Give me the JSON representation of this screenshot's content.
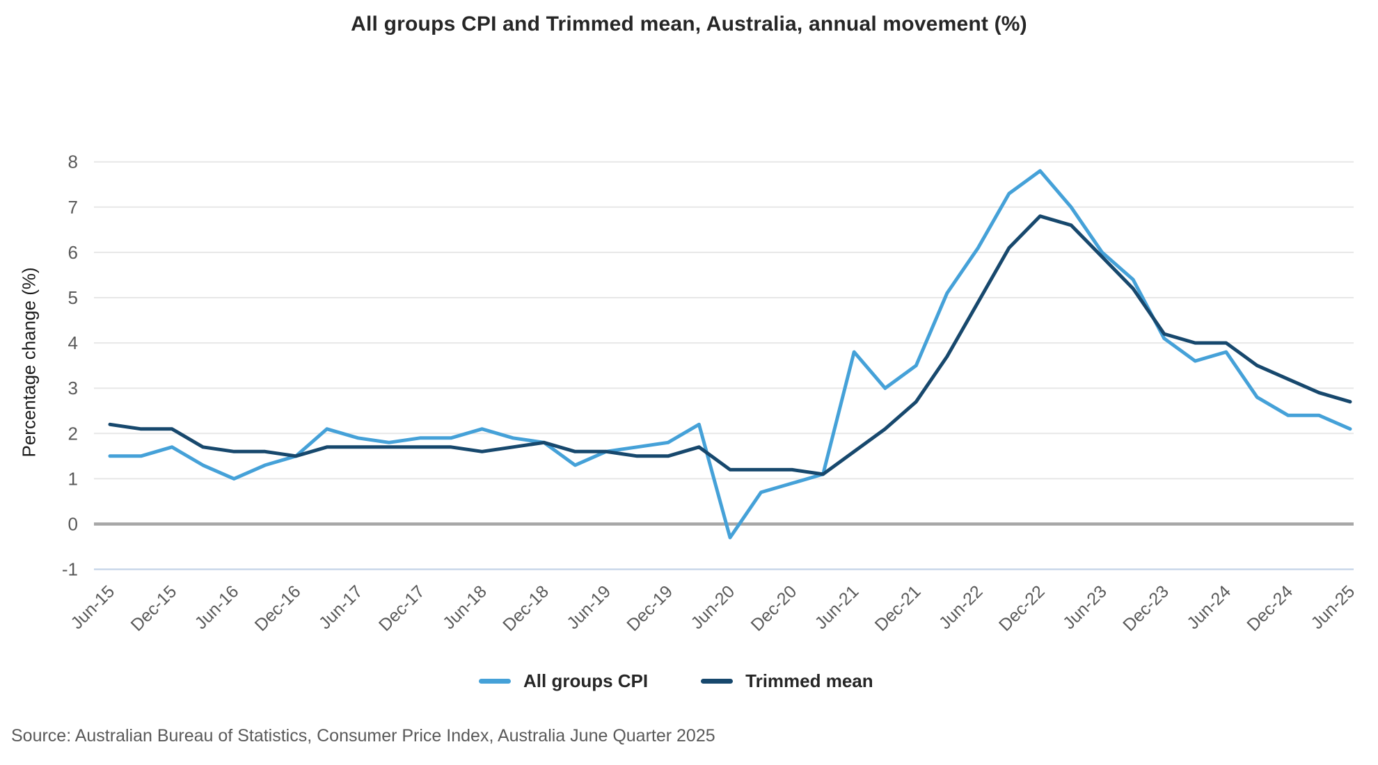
{
  "title": "All groups CPI and Trimmed mean, Australia, annual movement (%)",
  "source": "Source: Australian Bureau of Statistics, Consumer Price Index, Australia June Quarter 2025",
  "chart_data": {
    "type": "line",
    "title": "All groups CPI and Trimmed mean, Australia, annual movement (%)",
    "xlabel": "",
    "ylabel": "Percentage change (%)",
    "ylim": [
      -1,
      8
    ],
    "yticks": [
      8,
      7,
      6,
      5,
      4,
      3,
      2,
      1,
      0,
      -1
    ],
    "grid": "horizontal",
    "legend_position": "bottom",
    "x_tick_every": 2,
    "categories": [
      "Jun-15",
      "Sep-15",
      "Dec-15",
      "Mar-16",
      "Jun-16",
      "Sep-16",
      "Dec-16",
      "Mar-17",
      "Jun-17",
      "Sep-17",
      "Dec-17",
      "Mar-18",
      "Jun-18",
      "Sep-18",
      "Dec-18",
      "Mar-19",
      "Jun-19",
      "Sep-19",
      "Dec-19",
      "Mar-20",
      "Jun-20",
      "Sep-20",
      "Dec-20",
      "Mar-21",
      "Jun-21",
      "Sep-21",
      "Dec-21",
      "Mar-22",
      "Jun-22",
      "Sep-22",
      "Dec-22",
      "Mar-23",
      "Jun-23",
      "Sep-23",
      "Dec-23",
      "Mar-24",
      "Jun-24",
      "Sep-24",
      "Dec-24",
      "Mar-25",
      "Jun-25"
    ],
    "series": [
      {
        "name": "All groups CPI",
        "color": "#45A1D8",
        "values": [
          1.5,
          1.5,
          1.7,
          1.3,
          1.0,
          1.3,
          1.5,
          2.1,
          1.9,
          1.8,
          1.9,
          1.9,
          2.1,
          1.9,
          1.8,
          1.3,
          1.6,
          1.7,
          1.8,
          2.2,
          -0.3,
          0.7,
          0.9,
          1.1,
          3.8,
          3.0,
          3.5,
          5.1,
          6.1,
          7.3,
          7.8,
          7.0,
          6.0,
          5.4,
          4.1,
          3.6,
          3.8,
          2.8,
          2.4,
          2.4,
          2.1
        ]
      },
      {
        "name": "Trimmed mean",
        "color": "#17486D",
        "values": [
          2.2,
          2.1,
          2.1,
          1.7,
          1.6,
          1.6,
          1.5,
          1.7,
          1.7,
          1.7,
          1.7,
          1.7,
          1.6,
          1.7,
          1.8,
          1.6,
          1.6,
          1.5,
          1.5,
          1.7,
          1.2,
          1.2,
          1.2,
          1.1,
          1.6,
          2.1,
          2.7,
          3.7,
          4.9,
          6.1,
          6.8,
          6.6,
          5.9,
          5.2,
          4.2,
          4.0,
          4.0,
          3.5,
          3.2,
          2.9,
          2.7
        ]
      }
    ],
    "colors": {
      "gridline": "#E7E7E7",
      "zero_line": "#A6A6A6",
      "minus_one_gridline": "#C9D7E9",
      "axis_text": "#595959"
    }
  }
}
